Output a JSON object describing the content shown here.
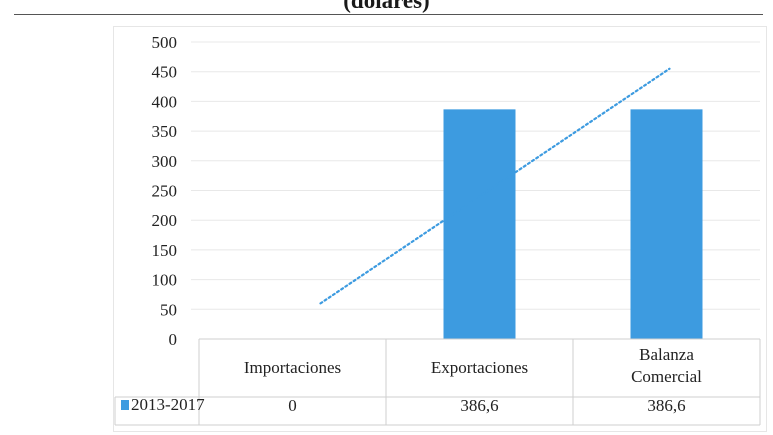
{
  "title": "(dólares)",
  "chart_data": {
    "type": "bar",
    "categories": [
      "Importaciones",
      "Exportaciones",
      "Balanza Comercial"
    ],
    "category_lines": [
      [
        "Importaciones"
      ],
      [
        "Exportaciones"
      ],
      [
        "Balanza",
        "Comercial"
      ]
    ],
    "series": [
      {
        "name": "2013-2017",
        "values": [
          0,
          386.6,
          386.6
        ],
        "display_values": [
          "0",
          "386,6",
          "386,6"
        ],
        "color": "#3d9be0"
      }
    ],
    "trendline": {
      "style": "dotted",
      "color": "#3d9be0",
      "y_start": 60,
      "y_end": 455
    },
    "yticks": [
      "0",
      "50",
      "100",
      "150",
      "200",
      "250",
      "300",
      "350",
      "400",
      "450",
      "500"
    ],
    "ylim": [
      0,
      500
    ],
    "grid": true,
    "legend": "data table"
  }
}
